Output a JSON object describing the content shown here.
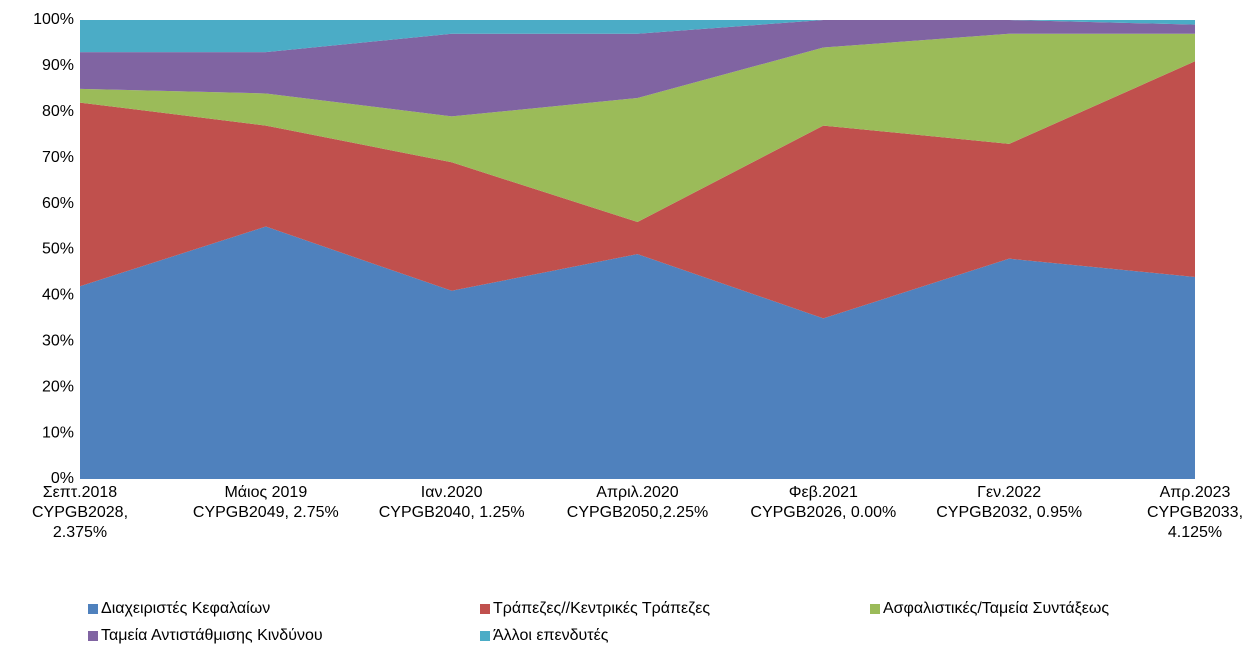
{
  "chart_data": {
    "type": "stacked_area",
    "categories": [
      [
        "Σεπτ.2018",
        "CYPGB2028,",
        "2.375%"
      ],
      [
        "Μάιος 2019",
        "CYPGB2049, 2.75%"
      ],
      [
        "Ιαν.2020",
        "CYPGB2040, 1.25%"
      ],
      [
        "Απριλ.2020",
        "CYPGB2050,2.25%"
      ],
      [
        "Φεβ.2021",
        "CYPGB2026, 0.00%"
      ],
      [
        "Γεν.2022",
        "CYPGB2032, 0.95%"
      ],
      [
        "Απρ.2023",
        "CYPGB2033,",
        "4.125%"
      ]
    ],
    "series": [
      {
        "name": "Διαχειριστές Κεφαλαίων",
        "color": "#4f81bd",
        "values": [
          42,
          55,
          41,
          49,
          35,
          48,
          44
        ]
      },
      {
        "name": "Τράπεζες//Κεντρικές Τράπεζες",
        "color": "#c0504d",
        "values": [
          40,
          22,
          28,
          7,
          42,
          25,
          47
        ]
      },
      {
        "name": "Ασφαλιστικές/Ταμεία Συντάξεως",
        "color": "#9bbb59",
        "values": [
          3,
          7,
          10,
          27,
          17,
          24,
          6
        ]
      },
      {
        "name": "Ταμεία Αντιστάθμισης Κινδύνου",
        "color": "#8064a2",
        "values": [
          8,
          9,
          18,
          14,
          6,
          3,
          2
        ]
      },
      {
        "name": "Άλλοι επενδυτές",
        "color": "#4bacc6",
        "values": [
          7,
          7,
          3,
          3,
          0,
          0,
          1
        ]
      }
    ],
    "ylim": [
      0,
      100
    ],
    "yticks": [
      {
        "value": 0,
        "label": "0%"
      },
      {
        "value": 10,
        "label": "10%"
      },
      {
        "value": 20,
        "label": "20%"
      },
      {
        "value": 30,
        "label": "30%"
      },
      {
        "value": 40,
        "label": "40%"
      },
      {
        "value": 50,
        "label": "50%"
      },
      {
        "value": 60,
        "label": "60%"
      },
      {
        "value": 70,
        "label": "70%"
      },
      {
        "value": 80,
        "label": "80%"
      },
      {
        "value": 90,
        "label": "90%"
      },
      {
        "value": 100,
        "label": "100%"
      }
    ],
    "grid": false,
    "legend": "bottom"
  }
}
